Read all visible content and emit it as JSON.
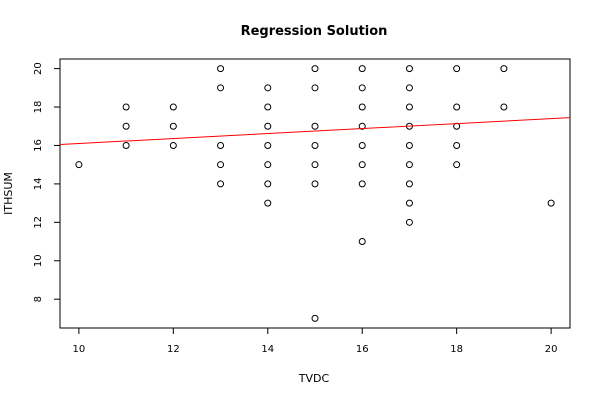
{
  "chart_data": {
    "type": "scatter",
    "title": "Regression Solution",
    "xlabel": "TVDC",
    "ylabel": "ITHSUM",
    "xlim": [
      9.6,
      20.4
    ],
    "ylim": [
      6.5,
      20.5
    ],
    "xticks": [
      10,
      12,
      14,
      16,
      18,
      20
    ],
    "yticks": [
      8,
      10,
      12,
      14,
      16,
      18,
      20
    ],
    "grid": false,
    "point_color": "#000000",
    "regression_line": {
      "color": "#ff0000",
      "x": [
        9.6,
        20.4
      ],
      "y": [
        16.05,
        17.45
      ]
    },
    "points": [
      {
        "x": 10,
        "y": 15
      },
      {
        "x": 11,
        "y": 18
      },
      {
        "x": 11,
        "y": 17
      },
      {
        "x": 11,
        "y": 16
      },
      {
        "x": 12,
        "y": 18
      },
      {
        "x": 12,
        "y": 17
      },
      {
        "x": 12,
        "y": 16
      },
      {
        "x": 13,
        "y": 20
      },
      {
        "x": 13,
        "y": 19
      },
      {
        "x": 13,
        "y": 16
      },
      {
        "x": 13,
        "y": 15
      },
      {
        "x": 13,
        "y": 14
      },
      {
        "x": 14,
        "y": 19
      },
      {
        "x": 14,
        "y": 18
      },
      {
        "x": 14,
        "y": 17
      },
      {
        "x": 14,
        "y": 16
      },
      {
        "x": 14,
        "y": 15
      },
      {
        "x": 14,
        "y": 14
      },
      {
        "x": 14,
        "y": 13
      },
      {
        "x": 15,
        "y": 20
      },
      {
        "x": 15,
        "y": 19
      },
      {
        "x": 15,
        "y": 17
      },
      {
        "x": 15,
        "y": 16
      },
      {
        "x": 15,
        "y": 15
      },
      {
        "x": 15,
        "y": 14
      },
      {
        "x": 15,
        "y": 7
      },
      {
        "x": 16,
        "y": 20
      },
      {
        "x": 16,
        "y": 19
      },
      {
        "x": 16,
        "y": 18
      },
      {
        "x": 16,
        "y": 17
      },
      {
        "x": 16,
        "y": 16
      },
      {
        "x": 16,
        "y": 15
      },
      {
        "x": 16,
        "y": 14
      },
      {
        "x": 16,
        "y": 11
      },
      {
        "x": 17,
        "y": 20
      },
      {
        "x": 17,
        "y": 19
      },
      {
        "x": 17,
        "y": 18
      },
      {
        "x": 17,
        "y": 17
      },
      {
        "x": 17,
        "y": 16
      },
      {
        "x": 17,
        "y": 15
      },
      {
        "x": 17,
        "y": 14
      },
      {
        "x": 17,
        "y": 13
      },
      {
        "x": 17,
        "y": 12
      },
      {
        "x": 18,
        "y": 20
      },
      {
        "x": 18,
        "y": 18
      },
      {
        "x": 18,
        "y": 17
      },
      {
        "x": 18,
        "y": 16
      },
      {
        "x": 18,
        "y": 15
      },
      {
        "x": 19,
        "y": 20
      },
      {
        "x": 19,
        "y": 18
      },
      {
        "x": 20,
        "y": 13
      }
    ]
  }
}
